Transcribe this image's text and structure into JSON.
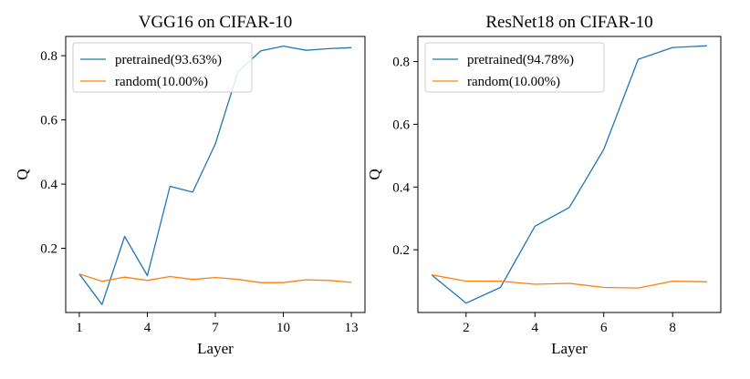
{
  "chart_data": [
    {
      "type": "line",
      "title": "VGG16 on CIFAR-10",
      "xlabel": "Layer",
      "ylabel": "Q",
      "xlim": [
        0.4,
        13.6
      ],
      "ylim": [
        0.0,
        0.86
      ],
      "xticks": [
        1,
        4,
        7,
        10,
        13
      ],
      "yticks": [
        0.2,
        0.4,
        0.6,
        0.8
      ],
      "legend_position": "top-left",
      "series": [
        {
          "name": "pretrained(93.63%)",
          "color": "#1f77b4",
          "x": [
            1,
            2,
            3,
            4,
            5,
            6,
            7,
            8,
            9,
            10,
            11,
            12,
            13
          ],
          "y": [
            0.12,
            0.025,
            0.237,
            0.115,
            0.393,
            0.375,
            0.525,
            0.75,
            0.815,
            0.83,
            0.817,
            0.822,
            0.825
          ]
        },
        {
          "name": "random(10.00%)",
          "color": "#ff7f0e",
          "x": [
            1,
            2,
            3,
            4,
            5,
            6,
            7,
            8,
            9,
            10,
            11,
            12,
            13
          ],
          "y": [
            0.12,
            0.097,
            0.11,
            0.1,
            0.112,
            0.103,
            0.109,
            0.103,
            0.093,
            0.093,
            0.102,
            0.1,
            0.094
          ]
        }
      ]
    },
    {
      "type": "line",
      "title": "ResNet18 on CIFAR-10",
      "xlabel": "Layer",
      "ylabel": "Q",
      "xlim": [
        0.6,
        9.4
      ],
      "ylim": [
        0.0,
        0.88
      ],
      "xticks": [
        2,
        4,
        6,
        8
      ],
      "yticks": [
        0.2,
        0.4,
        0.6,
        0.8
      ],
      "legend_position": "top-left",
      "series": [
        {
          "name": "pretrained(94.78%)",
          "color": "#1f77b4",
          "x": [
            1,
            2,
            3,
            4,
            5,
            6,
            7,
            8,
            9
          ],
          "y": [
            0.12,
            0.03,
            0.08,
            0.275,
            0.335,
            0.52,
            0.807,
            0.845,
            0.85
          ]
        },
        {
          "name": "random(10.00%)",
          "color": "#ff7f0e",
          "x": [
            1,
            2,
            3,
            4,
            5,
            6,
            7,
            8,
            9
          ],
          "y": [
            0.12,
            0.1,
            0.1,
            0.09,
            0.093,
            0.08,
            0.078,
            0.1,
            0.098
          ]
        }
      ]
    }
  ]
}
